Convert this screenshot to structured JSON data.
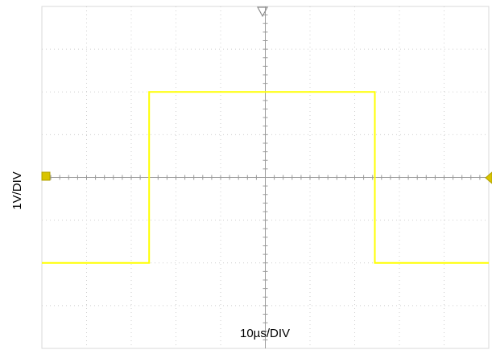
{
  "chart_data": {
    "type": "line",
    "xlabel": "10µs/DIV",
    "ylabel": "1V/DIV",
    "x_divisions": 10,
    "y_divisions": 8,
    "xlim": [
      -5,
      5
    ],
    "ylim": [
      -4,
      4
    ],
    "grid": true,
    "series": [
      {
        "color": "#ffff00",
        "x": [
          -5,
          -2.6,
          -2.6,
          2.45,
          2.45,
          5
        ],
        "y": [
          -2,
          -2,
          2,
          2,
          -2,
          -2
        ]
      }
    ]
  }
}
